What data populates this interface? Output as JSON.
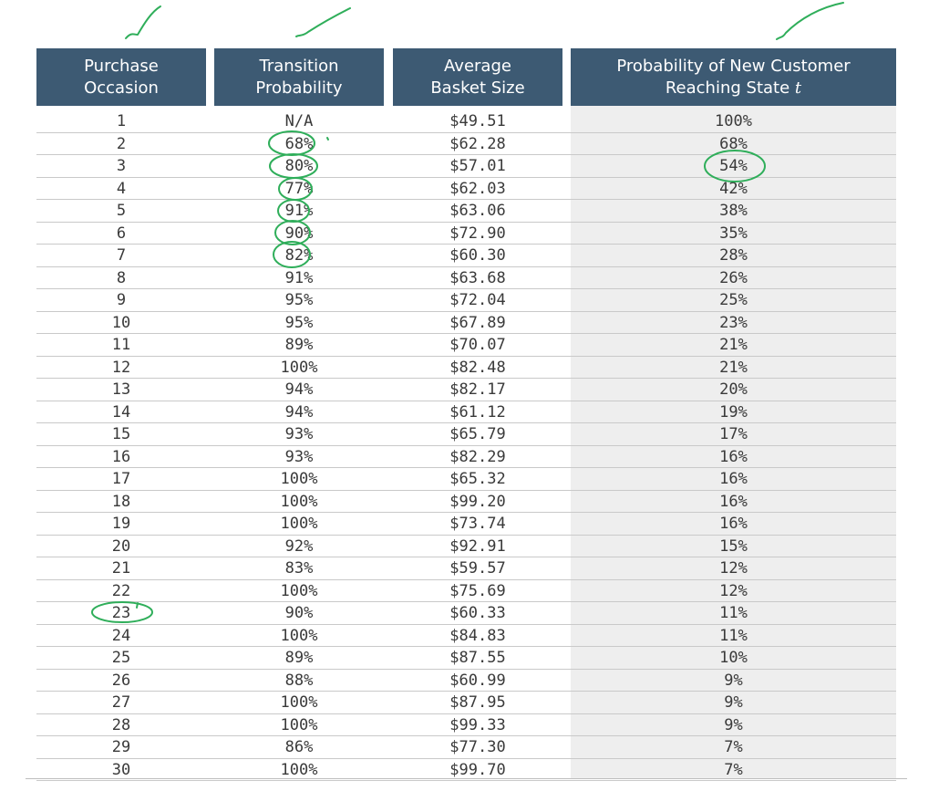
{
  "table": {
    "headers": [
      {
        "line1": "Purchase",
        "line2": "Occasion"
      },
      {
        "line1": "Transition",
        "line2": "Probability"
      },
      {
        "line1": "Average",
        "line2": "Basket Size"
      },
      {
        "line1": "Probability of New Customer",
        "line2": "Reaching State",
        "line2_var": "t"
      }
    ],
    "rows": [
      [
        "1",
        "N/A",
        "$49.51",
        "100%"
      ],
      [
        "2",
        "68%",
        "$62.28",
        "68%"
      ],
      [
        "3",
        "80%",
        "$57.01",
        "54%"
      ],
      [
        "4",
        "77%",
        "$62.03",
        "42%"
      ],
      [
        "5",
        "91%",
        "$63.06",
        "38%"
      ],
      [
        "6",
        "90%",
        "$72.90",
        "35%"
      ],
      [
        "7",
        "82%",
        "$60.30",
        "28%"
      ],
      [
        "8",
        "91%",
        "$63.68",
        "26%"
      ],
      [
        "9",
        "95%",
        "$72.04",
        "25%"
      ],
      [
        "10",
        "95%",
        "$67.89",
        "23%"
      ],
      [
        "11",
        "89%",
        "$70.07",
        "21%"
      ],
      [
        "12",
        "100%",
        "$82.48",
        "21%"
      ],
      [
        "13",
        "94%",
        "$82.17",
        "20%"
      ],
      [
        "14",
        "94%",
        "$61.12",
        "19%"
      ],
      [
        "15",
        "93%",
        "$65.79",
        "17%"
      ],
      [
        "16",
        "93%",
        "$82.29",
        "16%"
      ],
      [
        "17",
        "100%",
        "$65.32",
        "16%"
      ],
      [
        "18",
        "100%",
        "$99.20",
        "16%"
      ],
      [
        "19",
        "100%",
        "$73.74",
        "16%"
      ],
      [
        "20",
        "92%",
        "$92.91",
        "15%"
      ],
      [
        "21",
        "83%",
        "$59.57",
        "12%"
      ],
      [
        "22",
        "100%",
        "$75.69",
        "12%"
      ],
      [
        "23",
        "90%",
        "$60.33",
        "11%"
      ],
      [
        "24",
        "100%",
        "$84.83",
        "11%"
      ],
      [
        "25",
        "89%",
        "$87.55",
        "10%"
      ],
      [
        "26",
        "88%",
        "$60.99",
        "9%"
      ],
      [
        "27",
        "100%",
        "$87.95",
        "9%"
      ],
      [
        "28",
        "100%",
        "$99.33",
        "9%"
      ],
      [
        "29",
        "86%",
        "$77.30",
        "7%"
      ],
      [
        "30",
        "100%",
        "$99.70",
        "7%"
      ]
    ]
  },
  "annotations": {
    "ink_color": "#2fae5a",
    "checkmarks_above_columns": [
      1,
      2,
      4
    ],
    "circled_cells": [
      {
        "column": 2,
        "rows": [
          2,
          3,
          4,
          5,
          6,
          7
        ]
      },
      {
        "column": 4,
        "rows": [
          3
        ]
      },
      {
        "column": 1,
        "rows": [
          23
        ]
      }
    ]
  }
}
